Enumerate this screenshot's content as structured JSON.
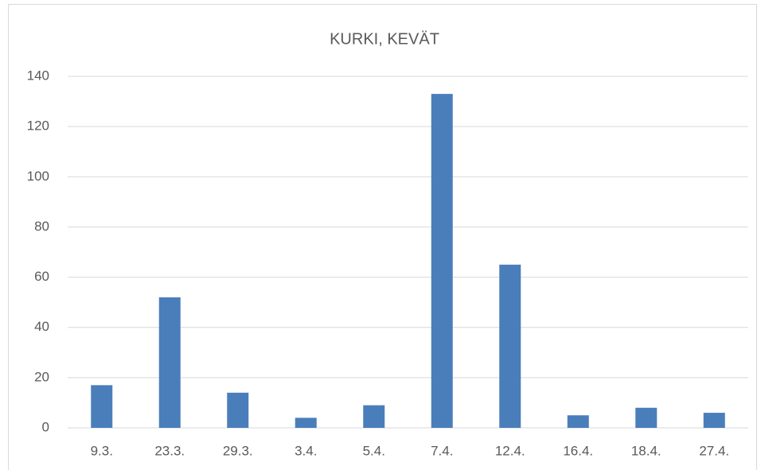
{
  "chart_data": {
    "type": "bar",
    "title": "KURKI, KEVÄT",
    "categories": [
      "9.3.",
      "23.3.",
      "29.3.",
      "3.4.",
      "5.4.",
      "7.4.",
      "12.4.",
      "16.4.",
      "18.4.",
      "27.4."
    ],
    "values": [
      17,
      52,
      14,
      4,
      9,
      133,
      65,
      5,
      8,
      6
    ],
    "color": "#4a7ebb",
    "ylim": [
      0,
      140
    ],
    "yticks": [
      0,
      20,
      40,
      60,
      80,
      100,
      120,
      140
    ],
    "grid": true
  }
}
